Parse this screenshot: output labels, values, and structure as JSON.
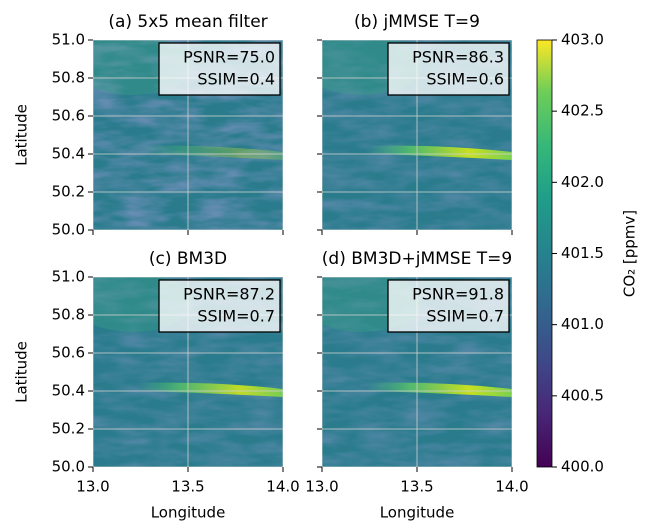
{
  "chart_data": {
    "type": "heatmap",
    "panels": [
      {
        "title": "(a) 5x5 mean filter",
        "annotations": [
          "PSNR=75.0",
          "SSIM=0.4"
        ]
      },
      {
        "title": "(b) jMMSE T=9",
        "annotations": [
          "PSNR=86.3",
          "SSIM=0.6"
        ]
      },
      {
        "title": "(c) BM3D",
        "annotations": [
          "PSNR=87.2",
          "SSIM=0.7"
        ]
      },
      {
        "title": "(d) BM3D+jMMSE T=9",
        "annotations": [
          "PSNR=91.8",
          "SSIM=0.7"
        ]
      }
    ],
    "xlabel": "Longitude",
    "ylabel": "Latitude",
    "xlim": [
      13,
      14
    ],
    "xticks": [
      {
        "value": 13,
        "label": "13.0"
      },
      13.5,
      {
        "value": 14,
        "label": "14.0"
      }
    ],
    "ylim": [
      50,
      51
    ],
    "yticks": [
      {
        "value": 50,
        "label": "50.0"
      },
      50.2,
      50.4,
      50.6,
      50.8,
      {
        "value": 51,
        "label": "51.0"
      }
    ],
    "grid": true,
    "colorbar": {
      "label": "CO₂ [ppmv]",
      "colormap": "viridis",
      "lim": [
        400,
        403
      ],
      "ticks": [
        {
          "value": 400,
          "label": "400.0"
        },
        400.5,
        {
          "value": 401,
          "label": "401.0"
        },
        401.5,
        {
          "value": 402,
          "label": "402.0"
        },
        402.5,
        {
          "value": 403,
          "label": "403.0"
        }
      ]
    }
  }
}
